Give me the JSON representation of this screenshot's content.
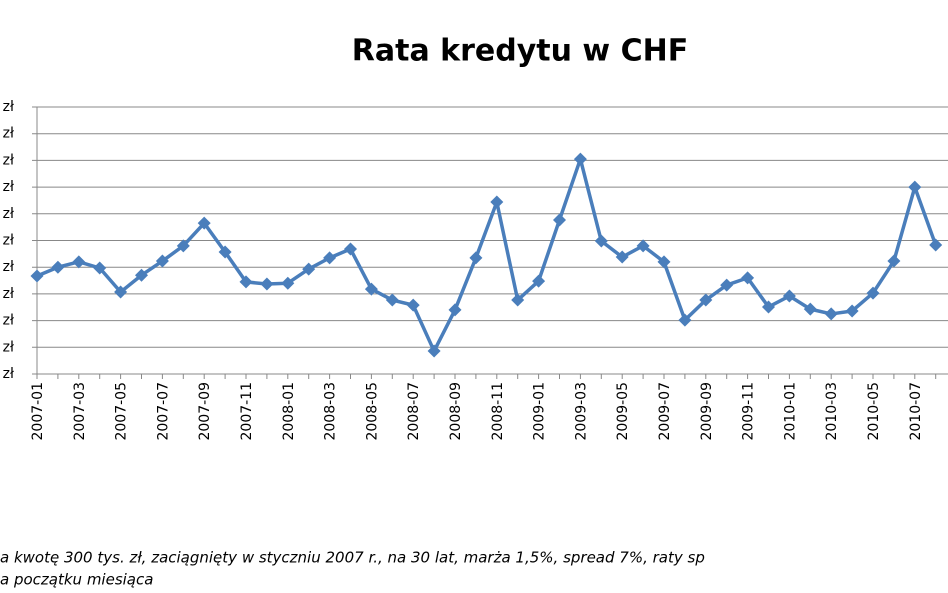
{
  "chart_data": {
    "type": "line",
    "title": "Rata kredytu w CHF",
    "categories": [
      "2007-01",
      null,
      "2007-03",
      null,
      "2007-05",
      null,
      "2007-07",
      null,
      "2007-09",
      null,
      "2007-11",
      null,
      "2008-01",
      null,
      "2008-03",
      null,
      "2008-05",
      null,
      "2008-07",
      null,
      "2008-09",
      null,
      "2008-11",
      null,
      "2009-01",
      null,
      "2009-03",
      null,
      "2009-05",
      null,
      "2009-07",
      null,
      "2009-09",
      null,
      "2009-11",
      null,
      "2010-01",
      null,
      "2010-03",
      null,
      "2010-05",
      null,
      "2010-07",
      null
    ],
    "series": [
      {
        "color": "#4a7ebb",
        "values": [
          3.67,
          4.0,
          4.2,
          3.97,
          3.07,
          3.7,
          4.23,
          4.8,
          5.65,
          4.57,
          3.45,
          3.37,
          3.4,
          3.93,
          4.35,
          4.68,
          3.18,
          2.77,
          2.58,
          0.86,
          2.4,
          4.35,
          6.44,
          2.77,
          3.48,
          5.77,
          8.05,
          4.98,
          4.38,
          4.8,
          4.2,
          2.02,
          2.77,
          3.33,
          3.6,
          2.51,
          2.92,
          2.43,
          2.25,
          2.36,
          3.03,
          4.23,
          7.0,
          4.83
        ]
      }
    ],
    "ylim": [
      0,
      10
    ],
    "yticks": [
      {
        "value": 0,
        "label": "zł"
      },
      {
        "value": 1,
        "label": "zł"
      },
      {
        "value": 2,
        "label": "zł"
      },
      {
        "value": 3,
        "label": "zł"
      },
      {
        "value": 4,
        "label": "zł"
      },
      {
        "value": 5,
        "label": "zł"
      },
      {
        "value": 6,
        "label": "zł"
      },
      {
        "value": 7,
        "label": "zł"
      },
      {
        "value": 8,
        "label": "zł"
      },
      {
        "value": 9,
        "label": "zł"
      },
      {
        "value": 10,
        "label": "zł"
      }
    ],
    "grid": true,
    "notes": [
      "a kwotę 300 tys. zł, zaciągnięty w styczniu 2007 r., na 30 lat, marża 1,5%, spread 7%, raty sp",
      "a początku miesiąca"
    ]
  }
}
